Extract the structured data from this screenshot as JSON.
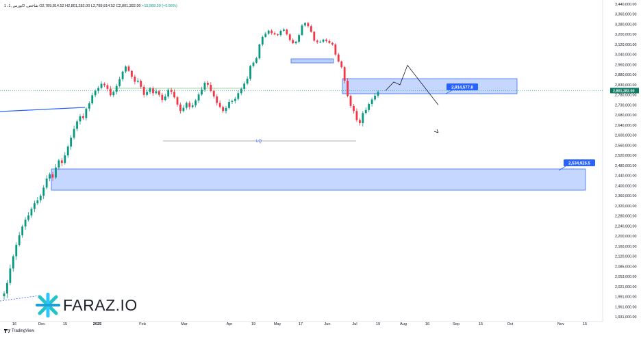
{
  "header": {
    "symbol": "1 ،بورس ,1D ,شاخص",
    "ohlc": "O2,789,814.52 H2,801,282.00 L2,789,814.52 C2,801,282.00",
    "change": "+15,589.39 (+0.56%)"
  },
  "brand": {
    "logo_text": "FARAZ.IO",
    "platform": "TradingView"
  },
  "colors": {
    "up": "#089981",
    "down": "#f23645",
    "zone_fill": "#bcd0ff",
    "zone_stroke": "#3a6cf4",
    "label_bg": "#2962ff",
    "price_label_bg": "#0b7a63",
    "grid": "#f0f3fa"
  },
  "chart_data": {
    "type": "candlestick",
    "title": "",
    "y_axis": {
      "side": "right",
      "ticks": [
        "3,440,000.00",
        "3,360,000.00",
        "3,280,000.00",
        "3,200,000.00",
        "3,120,000.00",
        "3,040,000.00",
        "2,960,000.00",
        "2,880,000.00",
        "2,830,000.00",
        "2,780,000.00",
        "2,730,000.00",
        "2,680,000.00",
        "2,640,000.00",
        "2,600,000.00",
        "2,560,000.00",
        "2,520,000.00",
        "2,480,000.00",
        "2,440,000.00",
        "2,400,000.00",
        "2,360,000.00",
        "2,320,000.00",
        "2,280,000.00",
        "2,240,000.00",
        "2,200,000.00",
        "2,160,000.00",
        "2,120,000.00",
        "2,085,000.00",
        "2,053,000.00",
        "2,021,000.00",
        "1,991,000.00",
        "1,961,000.00",
        "1,931,000.00"
      ]
    },
    "x_axis": {
      "ticks": [
        "16",
        "Dec",
        "15",
        "2025",
        "Feb",
        "Mar",
        "Apr",
        "19",
        "May",
        "17",
        "Jun",
        "Jul",
        "19",
        "Aug",
        "16",
        "Sep",
        "15",
        "Oct",
        "Nov",
        "15"
      ]
    },
    "last_price_label": "2,801,282.00",
    "annotations": [
      {
        "type": "zone",
        "label": "2,914,577.8"
      },
      {
        "type": "zone",
        "label": "2,534,925.5"
      },
      {
        "type": "text",
        "label": "LQ"
      }
    ],
    "closes": [
      2000000,
      2032000,
      2078000,
      2120000,
      2165000,
      2203000,
      2238000,
      2265000,
      2282000,
      2308000,
      2330000,
      2342000,
      2360000,
      2392000,
      2428000,
      2445000,
      2432000,
      2472000,
      2500000,
      2490000,
      2520000,
      2555000,
      2590000,
      2625000,
      2655000,
      2675000,
      2668000,
      2712000,
      2738000,
      2778000,
      2800000,
      2814000,
      2835000,
      2828000,
      2810000,
      2778000,
      2795000,
      2824000,
      2858000,
      2905000,
      2945000,
      2910000,
      2870000,
      2845000,
      2850000,
      2820000,
      2780000,
      2795000,
      2812000,
      2788000,
      2798000,
      2780000,
      2755000,
      2772000,
      2805000,
      2795000,
      2768000,
      2732000,
      2700000,
      2716000,
      2740000,
      2720000,
      2728000,
      2752000,
      2782000,
      2806000,
      2840000,
      2830000,
      2800000,
      2772000,
      2740000,
      2720000,
      2700000,
      2715000,
      2745000,
      2750000,
      2760000,
      2788000,
      2810000,
      2836000,
      2860000,
      2950000,
      2975000,
      3010000,
      3120000,
      3180000,
      3205000,
      3230000,
      3210000,
      3200000,
      3195000,
      3228000,
      3238000,
      3200000,
      3155000,
      3130000,
      3142000,
      3195000,
      3270000,
      3290000,
      3265000,
      3220000,
      3150000,
      3138000,
      3142000,
      3158000,
      3148000,
      3132000,
      3120000,
      3040000,
      2985000,
      2940000,
      2850000,
      2775000,
      2725000,
      2700000,
      2660000,
      2648000,
      2690000,
      2705000,
      2735000,
      2757000,
      2776000,
      2795000
    ],
    "projection_path": [
      2801282,
      2844000,
      2830000,
      2955000,
      2730000
    ]
  }
}
